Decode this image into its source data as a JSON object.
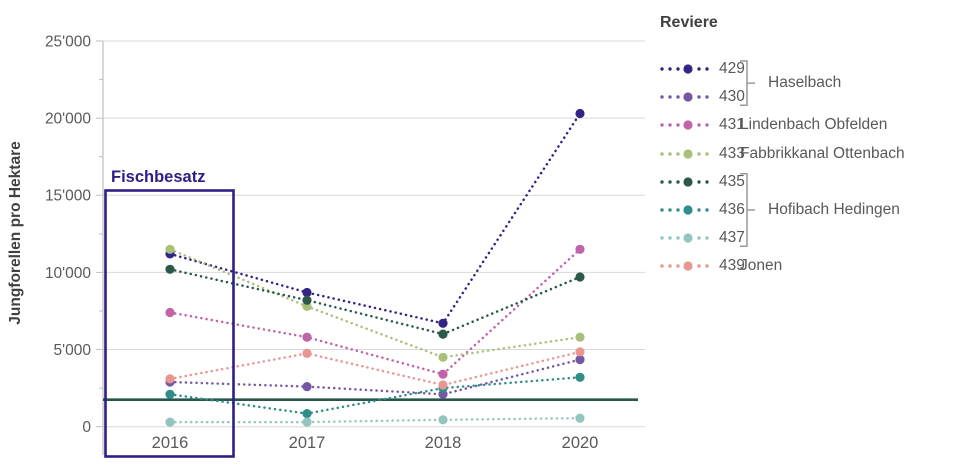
{
  "chart_data": {
    "type": "line",
    "title": "",
    "ylabel": "Jungforellen pro Hektare",
    "xlabel": "",
    "x_categories": [
      "2016",
      "2017",
      "2018",
      "2020"
    ],
    "ylim": [
      0,
      25000
    ],
    "ytick_interval": 5000,
    "ytick_labels": [
      "0",
      "5'000",
      "10'000",
      "15'000",
      "20'000",
      "25'000"
    ],
    "grid": "horizontal",
    "line_style": "dotted",
    "series": [
      {
        "id": "429",
        "name": "429",
        "group": "Haselbach",
        "color": "#352387",
        "values": [
          11200,
          8700,
          6700,
          20300
        ]
      },
      {
        "id": "430",
        "name": "430",
        "group": "Haselbach",
        "color": "#7557a3",
        "values": [
          2900,
          2600,
          2100,
          4350
        ]
      },
      {
        "id": "431",
        "name": "431",
        "group": "Lindenbach Obfelden",
        "color": "#c163a7",
        "values": [
          7400,
          5800,
          3400,
          11500
        ]
      },
      {
        "id": "433",
        "name": "433",
        "group": "Fabbrikkanal Ottenbach",
        "color": "#a8c07a",
        "values": [
          11500,
          7800,
          4500,
          5800
        ]
      },
      {
        "id": "435",
        "name": "435",
        "group": "Hofibach Hedingen",
        "color": "#2c584a",
        "values": [
          10200,
          8200,
          6000,
          9700
        ]
      },
      {
        "id": "436",
        "name": "436",
        "group": "Hofibach Hedingen",
        "color": "#2f8d8a",
        "values": [
          2100,
          850,
          2500,
          3200
        ]
      },
      {
        "id": "437",
        "name": "437",
        "group": "Hofibach Hedingen",
        "color": "#93c5bf",
        "values": [
          300,
          300,
          450,
          550
        ]
      },
      {
        "id": "439",
        "name": "439",
        "group": "Jonen",
        "color": "#e8968f",
        "values": [
          3100,
          4750,
          2700,
          4850
        ]
      }
    ],
    "reference_line": {
      "value": 1750,
      "color": "#28564a"
    },
    "annotation_box": {
      "label": "Fischbesatz",
      "x_category": "2016",
      "y_top": 15000,
      "color": "#2e1f87"
    }
  },
  "legend": {
    "title": "Reviere",
    "groups": [
      {
        "label": "Haselbach",
        "series": [
          "429",
          "430"
        ],
        "bracket": true
      },
      {
        "label": "Lindenbach Obfelden",
        "series": [
          "431"
        ],
        "bracket": false
      },
      {
        "label": "Fabbrikkanal Ottenbach",
        "series": [
          "433"
        ],
        "bracket": false
      },
      {
        "label": "Hofibach Hedingen",
        "series": [
          "435",
          "436",
          "437"
        ],
        "bracket": true
      },
      {
        "label": "Jonen",
        "series": [
          "439"
        ],
        "bracket": false
      }
    ]
  },
  "colors": {
    "axis_text": "#595959",
    "title_text": "#404040",
    "gridline": "#d9d9d9",
    "axis_line": "#bfbfbf",
    "bracket": "#999999",
    "annotation": "#2e1f87",
    "reference_line": "#28564a"
  }
}
